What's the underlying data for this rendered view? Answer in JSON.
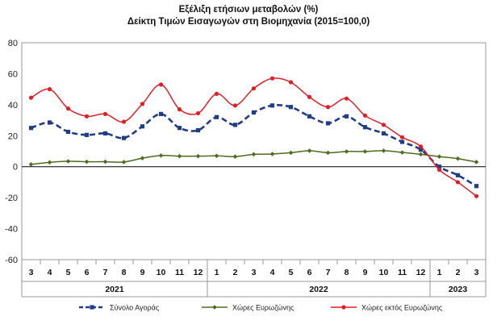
{
  "chart_data": {
    "type": "line",
    "title": "Εξέλιξη ετήσιων μεταβολών (%)",
    "subtitle": "Δείκτη Τιμών Εισαγωγών στη Βιομηχανία (2015=100,0)",
    "xlabel": "",
    "ylabel": "",
    "ylim": [
      -60,
      80
    ],
    "yticks": [
      "80",
      "60",
      "40",
      "20",
      "0",
      "-20",
      "-40",
      "-60"
    ],
    "categories": [
      "3",
      "4",
      "5",
      "6",
      "7",
      "8",
      "9",
      "10",
      "11",
      "12",
      "1",
      "2",
      "3",
      "4",
      "5",
      "6",
      "7",
      "8",
      "9",
      "10",
      "11",
      "12",
      "1",
      "2",
      "3"
    ],
    "year_groups": [
      {
        "label": "2021",
        "count": 10
      },
      {
        "label": "2022",
        "count": 12
      },
      {
        "label": "2023",
        "count": 3
      }
    ],
    "grid": false,
    "legend_position": "bottom",
    "series": [
      {
        "name": "Σύνολο Αγοράς",
        "color": "#1f3c88",
        "style": "dashed",
        "marker": "square",
        "values": [
          25,
          28.5,
          22.5,
          20.5,
          21.5,
          18.5,
          26,
          34,
          25,
          23.5,
          32,
          27,
          35,
          39.5,
          38.5,
          32.5,
          28,
          32.5,
          25.5,
          21.5,
          16,
          11,
          0,
          -5.5,
          -12.5
        ]
      },
      {
        "name": "Χώρες Ευρωζώνης",
        "color": "#4e6b1f",
        "style": "solid",
        "marker": "diamond",
        "values": [
          1.5,
          2.8,
          3.5,
          3.2,
          3.2,
          3,
          5.5,
          7.2,
          6.8,
          6.8,
          7,
          6.5,
          8,
          8.2,
          9,
          10.3,
          9,
          9.8,
          9.8,
          10.3,
          9.2,
          8,
          6.5,
          5.2,
          3
        ]
      },
      {
        "name": "Χώρες εκτός Ευρωζώνης",
        "color": "#e01f24",
        "style": "solid",
        "marker": "circle",
        "values": [
          44.5,
          50,
          37.5,
          32.5,
          34,
          29,
          40.5,
          53,
          37,
          34.5,
          47,
          39.5,
          50.5,
          57,
          54.5,
          45,
          38.5,
          44,
          33,
          27,
          19,
          13,
          -2,
          -10,
          -19
        ]
      }
    ]
  }
}
